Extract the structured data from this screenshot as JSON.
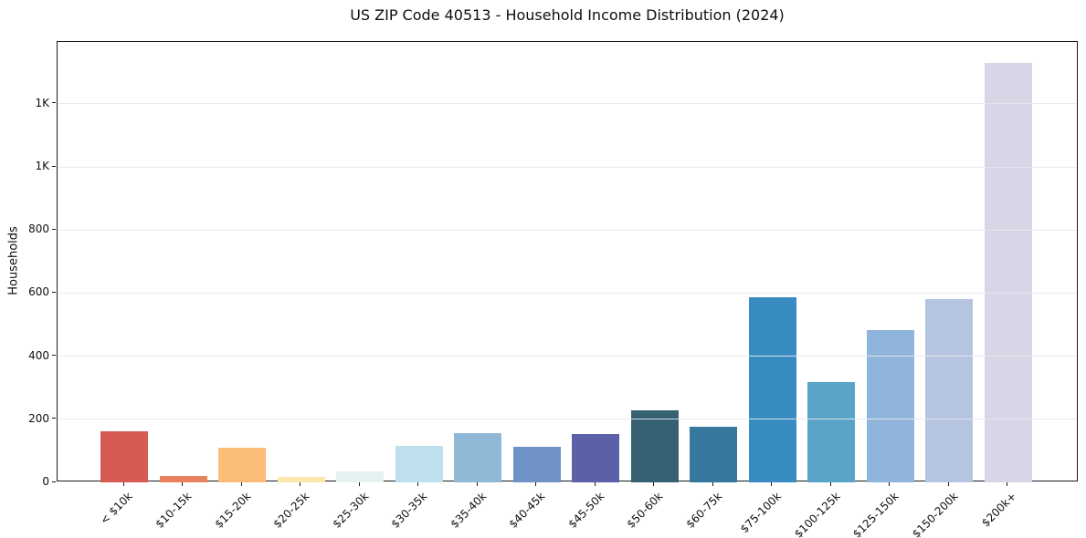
{
  "figure": {
    "title": "US ZIP Code 40513 - Household Income Distribution (2024)"
  },
  "chart_data": {
    "type": "bar",
    "title": "US ZIP Code 40513 - Household Income Distribution (2024)",
    "xlabel": "",
    "ylabel": "Households",
    "categories": [
      "< $10k",
      "$10-15k",
      "$15-20k",
      "$20-25k",
      "$25-30k",
      "$30-35k",
      "$35-40k",
      "$40-45k",
      "$45-50k",
      "$50-60k",
      "$60-75k",
      "$75-100k",
      "$100-125k",
      "$125-150k",
      "$150-200k",
      "$200k+"
    ],
    "values": [
      163,
      21,
      111,
      18,
      36,
      116,
      157,
      112,
      154,
      227,
      176,
      586,
      318,
      483,
      581,
      1329
    ],
    "bar_colors": [
      "#d65b52",
      "#e8825f",
      "#fbbc78",
      "#fae7ab",
      "#e6f1f1",
      "#bee0ec",
      "#90b9d8",
      "#6f92c6",
      "#5c60a8",
      "#356173",
      "#36789e",
      "#388cc2",
      "#58a5c8",
      "#8fb5dc",
      "#b5c5e0",
      "#d6d6e6"
    ],
    "yticks": {
      "values": [
        0,
        200,
        400,
        600,
        800,
        1000,
        1200
      ],
      "labels": [
        "0",
        "200",
        "400",
        "600",
        "800",
        "1K",
        "1K"
      ]
    },
    "ylim": [
      0,
      1396
    ],
    "grid": "horizontal",
    "legend": "none"
  },
  "colors": {
    "background": "#ffffff",
    "grid": "#e8e8ed",
    "spine": "#1a1a1a",
    "text": "#0f0f0f"
  }
}
